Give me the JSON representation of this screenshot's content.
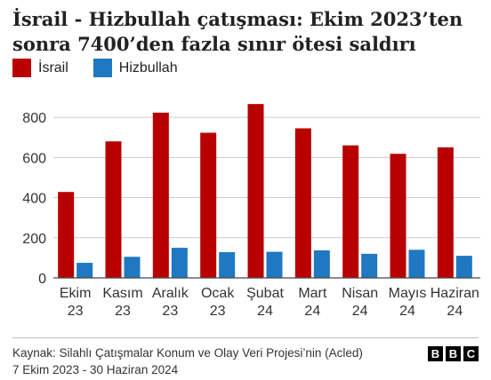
{
  "chart_data": {
    "type": "bar",
    "title": "İsrail - Hizbullah çatışması: Ekim 2023’ten sonra 7400’den fazla sınır ötesi saldırı",
    "categories": [
      [
        "Ekim",
        "23"
      ],
      [
        "Kasım",
        "23"
      ],
      [
        "Aralık",
        "23"
      ],
      [
        "Ocak",
        "23"
      ],
      [
        "Şubat",
        "24"
      ],
      [
        "Mart",
        "24"
      ],
      [
        "Nisan",
        "24"
      ],
      [
        "Mayıs",
        "24"
      ],
      [
        "Haziran",
        "24"
      ]
    ],
    "series": [
      {
        "name": "İsrail",
        "color": "#b80000",
        "values": [
          428,
          680,
          823,
          723,
          866,
          745,
          660,
          618,
          650
        ]
      },
      {
        "name": "Hizbullah",
        "color": "#1f78c1",
        "values": [
          75,
          105,
          150,
          128,
          130,
          137,
          120,
          140,
          110
        ]
      }
    ],
    "yticks": [
      0,
      200,
      400,
      600,
      800
    ],
    "ylim": [
      0,
      880
    ],
    "grid": true,
    "legend": "top-left"
  },
  "source": {
    "line1": "Kaynak: Silahlı Çatışmalar Konum ve Olay Veri Projesi’nin (Acled)",
    "line2": "7 Ekim 2023 - 30 Haziran 2024"
  },
  "logo": {
    "letters": [
      "B",
      "B",
      "C"
    ]
  }
}
